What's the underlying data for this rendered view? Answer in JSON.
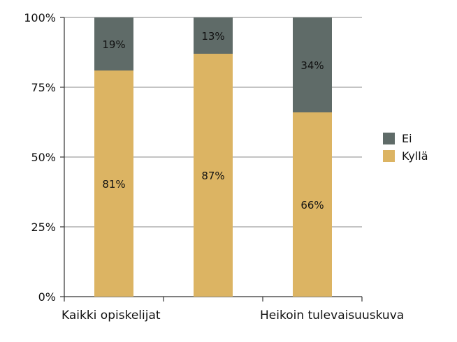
{
  "chart_data": {
    "type": "bar",
    "stacked": true,
    "orientation": "vertical",
    "categories": [
      "Kaikki opiskelijat",
      "",
      "Heikoin tulevaisuuskuva"
    ],
    "series": [
      {
        "name": "Kyllä",
        "values": [
          81,
          87,
          66
        ],
        "labels": [
          "81%",
          "87%",
          "66%"
        ],
        "color": "#dcb463"
      },
      {
        "name": "Ei",
        "values": [
          19,
          13,
          34
        ],
        "labels": [
          "19%",
          "13%",
          "34%"
        ],
        "color": "#5f6b68"
      }
    ],
    "yticks": [
      "0%",
      "25%",
      "50%",
      "75%",
      "100%"
    ],
    "ylim": [
      0,
      100
    ],
    "grid": true,
    "legend": {
      "position": "right",
      "order": [
        "Ei",
        "Kyllä"
      ]
    }
  }
}
